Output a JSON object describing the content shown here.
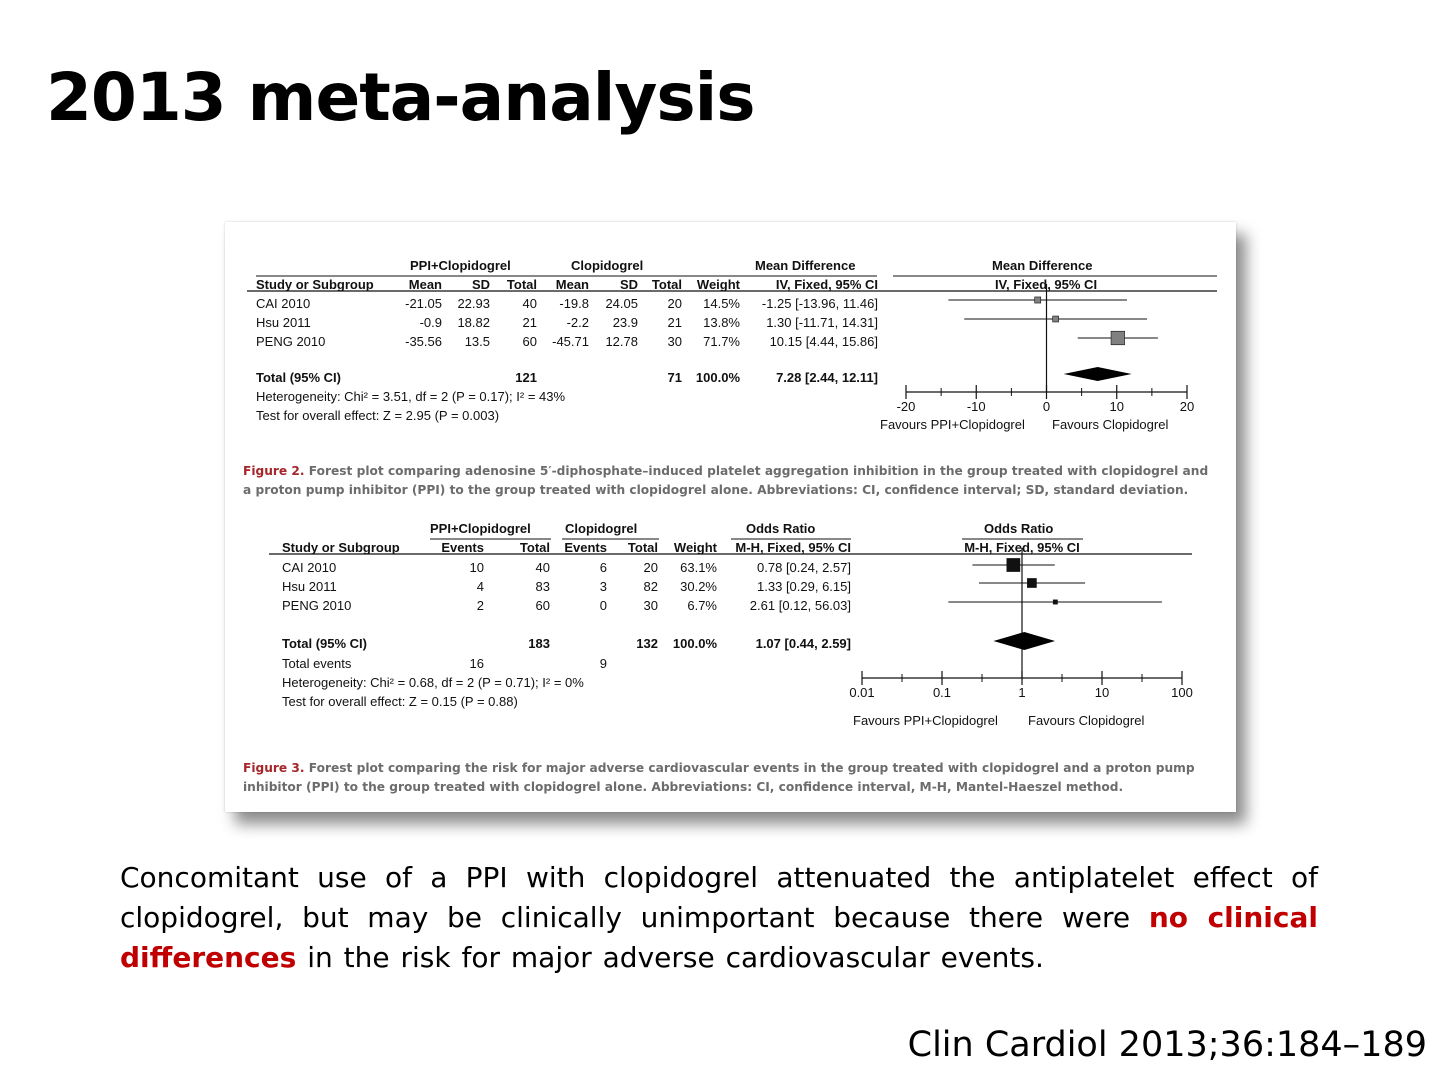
{
  "slide": {
    "title": "2013 meta-analysis",
    "conclusion": {
      "part1": "Concomitant use of a PPI with clopidogrel attenuated the antiplatelet effect of clopidogrel, but may be clinically unimportant because there were ",
      "highlight": "no clinical differences",
      "part2": " in the risk for major adverse cardiovascular events."
    },
    "citation": "Clin Cardiol 2013;36:184–189"
  },
  "figure2": {
    "group1": "PPI+Clopidogrel",
    "group2": "Clopidogrel",
    "effect_header": "Mean Difference",
    "plot_header": "Mean Difference",
    "columns": [
      "Study or Subgroup",
      "Mean",
      "SD",
      "Total",
      "Mean",
      "SD",
      "Total",
      "Weight",
      "IV, Fixed, 95% CI"
    ],
    "plot_method": "IV, Fixed, 95% CI",
    "rows": [
      {
        "study": "CAI 2010",
        "cells": [
          "-21.05",
          "22.93",
          "40",
          "-19.8",
          "24.05",
          "20",
          "14.5%",
          "-1.25 [-13.96, 11.46]"
        ]
      },
      {
        "study": "Hsu 2011",
        "cells": [
          "-0.9",
          "18.82",
          "21",
          "-2.2",
          "23.9",
          "21",
          "13.8%",
          "1.30 [-11.71, 14.31]"
        ]
      },
      {
        "study": "PENG 2010",
        "cells": [
          "-35.56",
          "13.5",
          "60",
          "-45.71",
          "12.78",
          "30",
          "71.7%",
          "10.15 [4.44, 15.86]"
        ]
      }
    ],
    "total": {
      "label": "Total (95% CI)",
      "total1": "121",
      "total2": "71",
      "weight": "100.0%",
      "ci": "7.28 [2.44, 12.11]"
    },
    "heterogeneity": "Heterogeneity: Chi² = 3.51, df = 2 (P = 0.17); I² = 43%",
    "overall_effect": "Test for overall effect: Z = 2.95 (P = 0.003)",
    "axis_ticks": [
      "-20",
      "-10",
      "0",
      "10",
      "20"
    ],
    "favours_left": "Favours PPI+Clopidogrel",
    "favours_right": "Favours Clopidogrel",
    "caption_label": "Figure 2.",
    "caption_text": "Forest plot comparing adenosine 5′-diphosphate–induced platelet aggregation inhibition in the group treated with clopidogrel and a proton pump inhibitor (PPI) to the group treated with clopidogrel alone. Abbreviations: CI, confidence interval; SD, standard deviation.",
    "plot_data": {
      "type": "forest",
      "scale": "linear",
      "xlim": [
        -20,
        20
      ],
      "null_value": 0,
      "studies": [
        {
          "est": -1.25,
          "lo": -13.96,
          "hi": 11.46,
          "weight": 14.5
        },
        {
          "est": 1.3,
          "lo": -11.71,
          "hi": 14.31,
          "weight": 13.8
        },
        {
          "est": 10.15,
          "lo": 4.44,
          "hi": 15.86,
          "weight": 71.7
        }
      ],
      "pooled": {
        "est": 7.28,
        "lo": 2.44,
        "hi": 12.11
      },
      "marker_color": "#808080"
    }
  },
  "figure3": {
    "group1": "PPI+Clopidogrel",
    "group2": "Clopidogrel",
    "effect_header": "Odds Ratio",
    "plot_header": "Odds Ratio",
    "columns": [
      "Study or Subgroup",
      "Events",
      "Total",
      "Events",
      "Total",
      "Weight",
      "M-H, Fixed, 95% CI"
    ],
    "plot_method": "M-H, Fixed, 95% CI",
    "rows": [
      {
        "study": "CAI 2010",
        "cells": [
          "10",
          "40",
          "6",
          "20",
          "63.1%",
          "0.78 [0.24, 2.57]"
        ]
      },
      {
        "study": "Hsu 2011",
        "cells": [
          "4",
          "83",
          "3",
          "82",
          "30.2%",
          "1.33 [0.29, 6.15]"
        ]
      },
      {
        "study": "PENG 2010",
        "cells": [
          "2",
          "60",
          "0",
          "30",
          "6.7%",
          "2.61 [0.12, 56.03]"
        ]
      }
    ],
    "total": {
      "label": "Total (95% CI)",
      "total1": "183",
      "total2": "132",
      "weight": "100.0%",
      "ci": "1.07 [0.44, 2.59]"
    },
    "total_events": {
      "label": "Total events",
      "events1": "16",
      "events2": "9"
    },
    "heterogeneity": "Heterogeneity: Chi² = 0.68, df = 2 (P = 0.71); I² = 0%",
    "overall_effect": "Test for overall effect: Z = 0.15 (P = 0.88)",
    "axis_ticks": [
      "0.01",
      "0.1",
      "1",
      "10",
      "100"
    ],
    "favours_left": "Favours PPI+Clopidogrel",
    "favours_right": "Favours Clopidogrel",
    "caption_label": "Figure 3.",
    "caption_text": "Forest plot comparing the risk for major adverse cardiovascular events in the group treated with clopidogrel and a proton pump inhibitor (PPI) to the group treated with clopidogrel alone. Abbreviations: CI, confidence interval, M-H, Mantel-Haeszel method.",
    "plot_data": {
      "type": "forest",
      "scale": "log",
      "xlim": [
        0.01,
        100
      ],
      "null_value": 1,
      "studies": [
        {
          "est": 0.78,
          "lo": 0.24,
          "hi": 2.57,
          "weight": 63.1
        },
        {
          "est": 1.33,
          "lo": 0.29,
          "hi": 6.15,
          "weight": 30.2
        },
        {
          "est": 2.61,
          "lo": 0.12,
          "hi": 56.03,
          "weight": 6.7
        }
      ],
      "pooled": {
        "est": 1.07,
        "lo": 0.44,
        "hi": 2.59
      },
      "marker_color": "#111111"
    }
  }
}
